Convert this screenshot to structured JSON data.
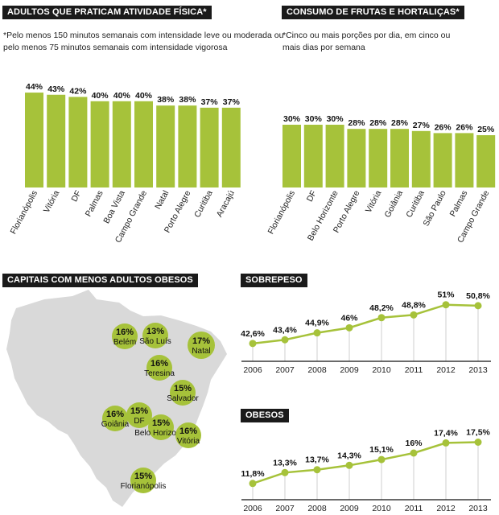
{
  "colors": {
    "accent": "#a6c23a",
    "dark": "#1a1a1a",
    "map": "#d9d9d9"
  },
  "panels": {
    "activity": {
      "title": "ADULTOS QUE PRATICAM ATIVIDADE FÍSICA*",
      "note_line1": "*Pelo menos 150 minutos semanais com intensidade leve ou moderada ou",
      "note_line2": "pelo menos 75 minutos semanais com intensidade vigorosa"
    },
    "fruits": {
      "title": "CONSUMO DE FRUTAS E HORTALIÇAS*",
      "note_line1": "*Cinco ou mais porções por dia, em cinco ou",
      "note_line2": "mais dias por semana"
    },
    "map": {
      "title": "CAPITAIS COM MENOS ADULTOS OBESOS"
    },
    "overweight": {
      "title": "SOBREPESO"
    },
    "obese": {
      "title": "OBESOS"
    }
  },
  "chart_data": [
    {
      "id": "activity",
      "type": "bar",
      "title": "ADULTOS QUE PRATICAM ATIVIDADE FÍSICA*",
      "categories": [
        "Florianópolis",
        "Vitória",
        "DF",
        "Palmas",
        "Boa Vista",
        "Campo Grande",
        "Natal",
        "Porto Alegre",
        "Curitiba",
        "Aracajú"
      ],
      "values": [
        44,
        43,
        42,
        40,
        40,
        40,
        38,
        38,
        37,
        37
      ],
      "labels": [
        "44%",
        "43%",
        "42%",
        "40%",
        "40%",
        "40%",
        "38%",
        "38%",
        "37%",
        "37%"
      ],
      "unit": "%"
    },
    {
      "id": "fruits",
      "type": "bar",
      "title": "CONSUMO DE FRUTAS E HORTALIÇAS*",
      "categories": [
        "Florianópolis",
        "DF",
        "Belo Horizonte",
        "Porto Alegre",
        "Vitória",
        "Goiânia",
        "Curitiba",
        "São Paulo",
        "Palmas",
        "Campo Grande"
      ],
      "values": [
        30,
        30,
        30,
        28,
        28,
        28,
        27,
        26,
        26,
        25
      ],
      "labels": [
        "30%",
        "30%",
        "30%",
        "28%",
        "28%",
        "28%",
        "27%",
        "26%",
        "26%",
        "25%"
      ],
      "unit": "%"
    },
    {
      "id": "map",
      "type": "table",
      "title": "CAPITAIS COM MENOS ADULTOS OBESOS",
      "rows": [
        {
          "city": "Belém",
          "value": "16%"
        },
        {
          "city": "São Luís",
          "value": "13%"
        },
        {
          "city": "Natal",
          "value": "17%"
        },
        {
          "city": "Teresina",
          "value": "16%"
        },
        {
          "city": "Salvador",
          "value": "15%"
        },
        {
          "city": "DF",
          "value": "15%"
        },
        {
          "city": "Goiânia",
          "value": "16%"
        },
        {
          "city": "Belo Horizonte",
          "value": "15%"
        },
        {
          "city": "Vitória",
          "value": "16%"
        },
        {
          "city": "Florianópolis",
          "value": "15%"
        }
      ]
    },
    {
      "id": "overweight",
      "type": "line",
      "title": "SOBREPESO",
      "x": [
        "2006",
        "2007",
        "2008",
        "2009",
        "2010",
        "2011",
        "2012",
        "2013"
      ],
      "values": [
        42.6,
        43.4,
        44.9,
        46,
        48.2,
        48.8,
        51,
        50.8
      ],
      "labels": [
        "42,6%",
        "43,4%",
        "44,9%",
        "46%",
        "48,2%",
        "48,8%",
        "51%",
        "50,8%"
      ],
      "ylim": [
        41,
        52
      ]
    },
    {
      "id": "obese",
      "type": "line",
      "title": "OBESOS",
      "x": [
        "2006",
        "2007",
        "2008",
        "2009",
        "2010",
        "2011",
        "2012",
        "2013"
      ],
      "values": [
        11.8,
        13.3,
        13.7,
        14.3,
        15.1,
        16,
        17.4,
        17.5
      ],
      "labels": [
        "11,8%",
        "13,3%",
        "13,7%",
        "14,3%",
        "15,1%",
        "16%",
        "17,4%",
        "17,5%"
      ],
      "ylim": [
        11,
        18
      ]
    }
  ]
}
